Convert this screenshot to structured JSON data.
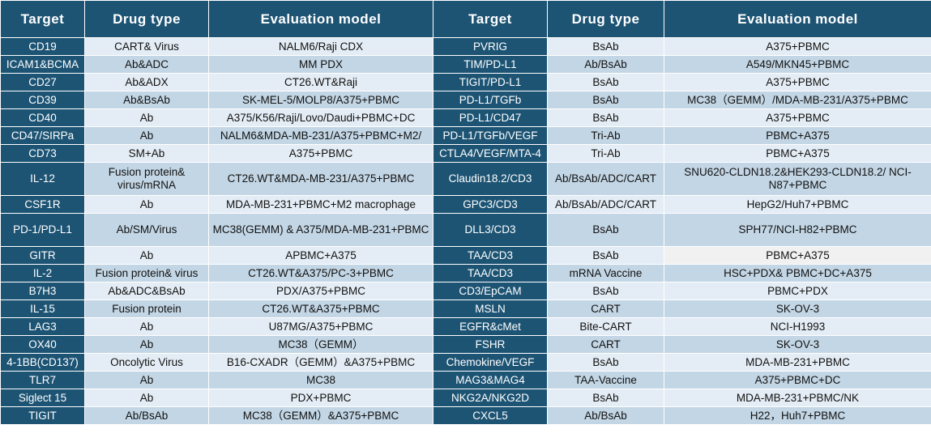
{
  "headers": [
    "Target",
    "Drug type",
    "Evaluation model",
    "Target",
    "Drug type",
    "Evaluation model"
  ],
  "rows": [
    {
      "left": {
        "target": "CD19",
        "drug": "CART& Virus",
        "model": "NALM6/Raji CDX"
      },
      "right": {
        "target": "PVRIG",
        "drug": "BsAb",
        "model": "A375+PBMC"
      }
    },
    {
      "left": {
        "target": "ICAM1&BCMA",
        "drug": "Ab&ADC",
        "model": "MM PDX"
      },
      "right": {
        "target": "TIM/PD-L1",
        "drug": "Ab/BsAb",
        "model": "A549/MKN45+PBMC"
      }
    },
    {
      "left": {
        "target": "CD27",
        "drug": "Ab&ADX",
        "model": "CT26.WT&Raji"
      },
      "right": {
        "target": "TIGIT/PD-L1",
        "drug": "BsAb",
        "model": "A375+PBMC"
      }
    },
    {
      "left": {
        "target": "CD39",
        "drug": "Ab&BsAb",
        "model": "SK-MEL-5/MOLP8/A375+PBMC"
      },
      "right": {
        "target": "PD-L1/TGFb",
        "drug": "BsAb",
        "model": "MC38（GEMM）/MDA-MB-231/A375+PBMC"
      }
    },
    {
      "left": {
        "target": "CD40",
        "drug": "Ab",
        "model": "A375/K56/Raji/Lovo/Daudi+PBMC+DC"
      },
      "right": {
        "target": "PD-L1/CD47",
        "drug": "BsAb",
        "model": "A375+PBMC"
      }
    },
    {
      "left": {
        "target": "CD47/SIRPa",
        "drug": "Ab",
        "model": "NALM6&MDA-MB-231/A375+PBMC+M2/"
      },
      "right": {
        "target": "PD-L1/TGFb/VEGF",
        "drug": "Tri-Ab",
        "model": "PBMC+A375"
      }
    },
    {
      "left": {
        "target": "CD73",
        "drug": "SM+Ab",
        "model": "A375+PBMC"
      },
      "right": {
        "target": "CTLA4/VEGF/MTA-4",
        "drug": "Tri-Ab",
        "model": "PBMC+A375"
      }
    },
    {
      "left": {
        "target": "IL-12",
        "drug": "Fusion protein& virus/mRNA",
        "model": "CT26.WT&MDA-MB-231/A375+PBMC"
      },
      "right": {
        "target": "Claudin18.2/CD3",
        "drug": "Ab/BsAb/ADC/CART",
        "model": "SNU620-CLDN18.2&HEK293-CLDN18.2/ NCI-N87+PBMC"
      }
    },
    {
      "left": {
        "target": "CSF1R",
        "drug": "Ab",
        "model": "MDA-MB-231+PBMC+M2 macrophage"
      },
      "right": {
        "target": "GPC3/CD3",
        "drug": "Ab/BsAb/ADC/CART",
        "model": "HepG2/Huh7+PBMC"
      }
    },
    {
      "left": {
        "target": "PD-1/PD-L1",
        "drug": "Ab/SM/Virus",
        "model": "MC38(GEMM) & A375/MDA-MB-231+PBMC"
      },
      "right": {
        "target": "DLL3/CD3",
        "drug": "BsAb",
        "model": "SPH77/NCI-H82+PBMC"
      }
    },
    {
      "left": {
        "target": "GITR",
        "drug": "Ab",
        "model": "APBMC+A375"
      },
      "right": {
        "target": "TAA/CD3",
        "drug": "BsAb",
        "model": "PBMC+A375"
      }
    },
    {
      "left": {
        "target": "IL-2",
        "drug": "Fusion protein& virus",
        "model": "CT26.WT&A375/PC-3+PBMC"
      },
      "right": {
        "target": "TAA/CD3",
        "drug": "mRNA Vaccine",
        "model": "HSC+PDX& PBMC+DC+A375"
      }
    },
    {
      "left": {
        "target": "B7H3",
        "drug": "Ab&ADC&BsAb",
        "model": "PDX/A375+PBMC"
      },
      "right": {
        "target": "CD3/EpCAM",
        "drug": "BsAb",
        "model": "PBMC+PDX"
      }
    },
    {
      "left": {
        "target": "IL-15",
        "drug": "Fusion protein",
        "model": "CT26.WT&A375+PBMC"
      },
      "right": {
        "target": "MSLN",
        "drug": "CART",
        "model": "SK-OV-3"
      }
    },
    {
      "left": {
        "target": "LAG3",
        "drug": "Ab",
        "model": "U87MG/A375+PBMC"
      },
      "right": {
        "target": "EGFR&cMet",
        "drug": "Bite-CART",
        "model": "NCI-H1993"
      }
    },
    {
      "left": {
        "target": "OX40",
        "drug": "Ab",
        "model": "MC38（GEMM）"
      },
      "right": {
        "target": "FSHR",
        "drug": "CART",
        "model": "SK-OV-3"
      }
    },
    {
      "left": {
        "target": "4-1BB(CD137)",
        "drug": "Oncolytic Virus",
        "model": "B16-CXADR（GEMM）&A375+PBMC"
      },
      "right": {
        "target": "Chemokine/VEGF",
        "drug": "BsAb",
        "model": "MDA-MB-231+PBMC"
      }
    },
    {
      "left": {
        "target": "TLR7",
        "drug": "Ab",
        "model": "MC38"
      },
      "right": {
        "target": "MAG3&MAG4",
        "drug": "TAA-Vaccine",
        "model": "A375+PBMC+DC"
      }
    },
    {
      "left": {
        "target": "Siglect 15",
        "drug": "Ab",
        "model": "PDX+PBMC"
      },
      "right": {
        "target": "NKG2A/NKG2D",
        "drug": "BsAb",
        "model": "MDA-MB-231+PBMC/NK"
      }
    },
    {
      "left": {
        "target": "TIGIT",
        "drug": "Ab/BsAb",
        "model": "MC38（GEMM）&A375+PBMC"
      },
      "right": {
        "target": "CXCL5",
        "drug": "Ab/BsAb",
        "model": "H22，Huh7+PBMC"
      }
    }
  ]
}
